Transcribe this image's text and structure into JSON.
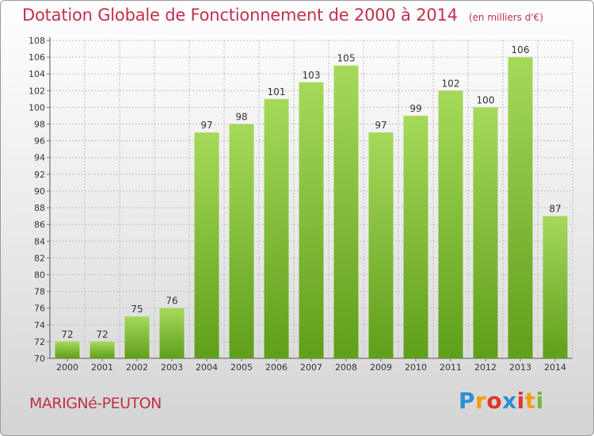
{
  "header": {
    "title": "Dotation Globale de Fonctionnement de 2000 à 2014",
    "unit": "(en milliers d'€)"
  },
  "footer": {
    "commune": "MARIGNé-PEUTON",
    "logo": "Proxiti",
    "logo_colors": [
      "#2b8fd0",
      "#f39c12",
      "#e3342f",
      "#2b8fd0",
      "#e3342f",
      "#f39c12",
      "#7ab733"
    ]
  },
  "colors": {
    "bar_light": "#a6d95a",
    "bar_dark": "#5f9f1a",
    "title": "#c0304a",
    "grid": "#bdbdbd"
  },
  "chart_data": {
    "type": "bar",
    "title": "Dotation Globale de Fonctionnement de 2000 à 2014",
    "subtitle": "(en milliers d'€)",
    "xlabel": "",
    "ylabel": "",
    "categories": [
      "2000",
      "2001",
      "2002",
      "2003",
      "2004",
      "2005",
      "2006",
      "2007",
      "2008",
      "2009",
      "2010",
      "2011",
      "2012",
      "2013",
      "2014"
    ],
    "values": [
      72,
      72,
      75,
      76,
      97,
      98,
      101,
      103,
      105,
      97,
      99,
      102,
      100,
      106,
      87
    ],
    "ylim": [
      70,
      108
    ],
    "yticks": [
      70,
      72,
      74,
      76,
      78,
      80,
      82,
      84,
      86,
      88,
      90,
      92,
      94,
      96,
      98,
      100,
      102,
      104,
      106,
      108
    ],
    "grid": true,
    "data_labels": true,
    "legend": "none"
  }
}
